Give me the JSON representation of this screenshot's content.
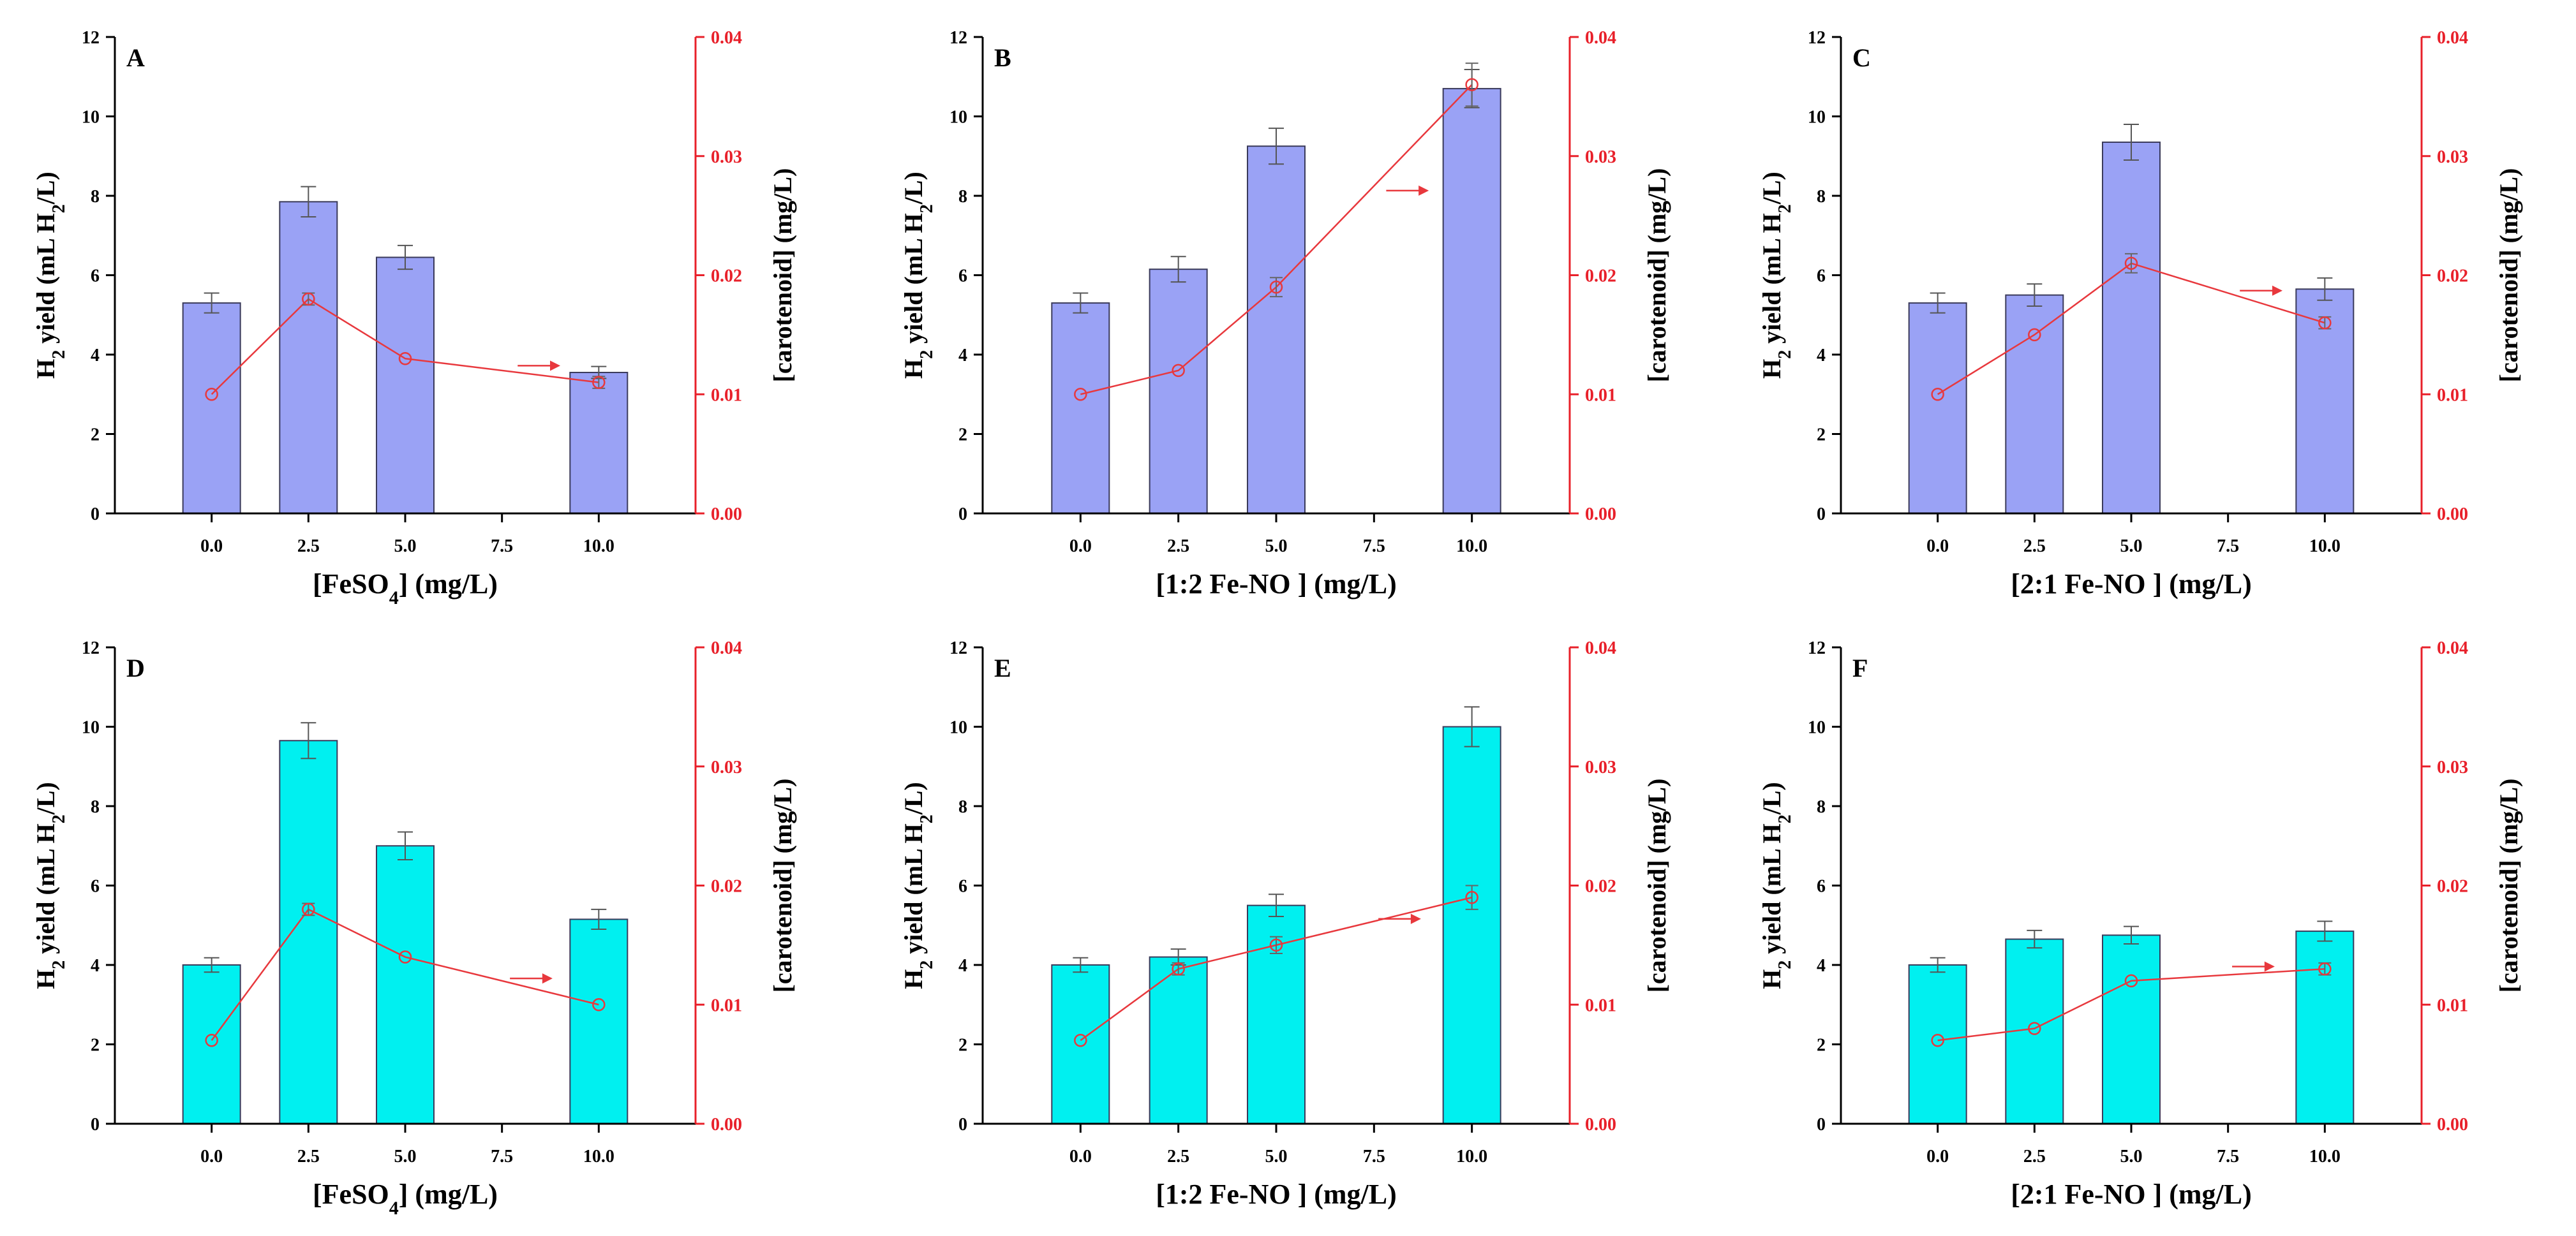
{
  "colors": {
    "bar_blue": "#9aa2f5",
    "bar_cyan": "#00f0f0",
    "line_red": "#e8383d",
    "axis_red": "#e8202a",
    "axis_black": "#000000"
  },
  "chart_data": [
    {
      "type": "bar",
      "panel": "A",
      "title": "",
      "xlabel": "[FeSO4] (mg/L)",
      "xlabel_main": "[FeSO",
      "xlabel_sub": "4",
      "xlabel_tail": "] (mg/L)",
      "ylabel": "H2 yield (mL H2/L)",
      "ylabel_right": "[carotenoid] (mg/L)",
      "x_ticks": [
        "0.0",
        "2.5",
        "5.0",
        "7.5",
        "10.0"
      ],
      "x": [
        0.0,
        2.5,
        5.0,
        10.0
      ],
      "xlim": [
        -2.5,
        12.5
      ],
      "ylim": [
        0,
        12
      ],
      "y_ticks": [
        "0",
        "2",
        "4",
        "6",
        "8",
        "10",
        "12"
      ],
      "y2lim": [
        0,
        0.04
      ],
      "y2_ticks": [
        "0.00",
        "0.01",
        "0.02",
        "0.03",
        "0.04"
      ],
      "bar_color": "#9aa2f5",
      "series": [
        {
          "name": "H2 yield",
          "axis": "left",
          "values": [
            5.3,
            7.85,
            6.45,
            3.55
          ],
          "errors": [
            0.25,
            0.38,
            0.3,
            0.15
          ]
        },
        {
          "name": "carotenoid",
          "axis": "right",
          "style": "line",
          "values": [
            0.01,
            0.018,
            0.013,
            0.011
          ],
          "errors": [
            0.0,
            0.0005,
            0.0,
            0.0005
          ]
        }
      ],
      "annotation_arrow": {
        "x": 8.4,
        "y2": 0.0124
      }
    },
    {
      "type": "bar",
      "panel": "B",
      "title": "",
      "xlabel": "[1:2 Fe-NO ] (mg/L)",
      "xlabel_main": "[1:2 Fe-NO ] (mg/L)",
      "xlabel_sub": "",
      "xlabel_tail": "",
      "ylabel": "H2 yield (mL H2/L)",
      "ylabel_right": "[carotenoid] (mg/L)",
      "x_ticks": [
        "0.0",
        "2.5",
        "5.0",
        "7.5",
        "10.0"
      ],
      "x": [
        0.0,
        2.5,
        5.0,
        10.0
      ],
      "xlim": [
        -2.5,
        12.5
      ],
      "ylim": [
        0,
        12
      ],
      "y_ticks": [
        "0",
        "2",
        "4",
        "6",
        "8",
        "10",
        "12"
      ],
      "y2lim": [
        0,
        0.04
      ],
      "y2_ticks": [
        "0.00",
        "0.01",
        "0.02",
        "0.03",
        "0.04"
      ],
      "bar_color": "#9aa2f5",
      "series": [
        {
          "name": "H2 yield",
          "axis": "left",
          "values": [
            5.3,
            6.15,
            9.25,
            10.7
          ],
          "errors": [
            0.25,
            0.32,
            0.45,
            0.48
          ]
        },
        {
          "name": "carotenoid",
          "axis": "right",
          "style": "line",
          "values": [
            0.01,
            0.012,
            0.019,
            0.036
          ],
          "errors": [
            0.0,
            0.0,
            0.0008,
            0.0018
          ]
        }
      ],
      "annotation_arrow": {
        "x": 8.3,
        "y2": 0.0271
      }
    },
    {
      "type": "bar",
      "panel": "C",
      "title": "",
      "xlabel": "[2:1 Fe-NO ] (mg/L)",
      "xlabel_main": "[2:1 Fe-NO ] (mg/L)",
      "xlabel_sub": "",
      "xlabel_tail": "",
      "ylabel": "H2 yield (mL H2/L)",
      "ylabel_right": "[carotenoid] (mg/L)",
      "x_ticks": [
        "0.0",
        "2.5",
        "5.0",
        "7.5",
        "10.0"
      ],
      "x": [
        0.0,
        2.5,
        5.0,
        10.0
      ],
      "xlim": [
        -2.5,
        12.5
      ],
      "ylim": [
        0,
        12
      ],
      "y_ticks": [
        "0",
        "2",
        "4",
        "6",
        "8",
        "10",
        "12"
      ],
      "y2lim": [
        0,
        0.04
      ],
      "y2_ticks": [
        "0.00",
        "0.01",
        "0.02",
        "0.03",
        "0.04"
      ],
      "bar_color": "#9aa2f5",
      "series": [
        {
          "name": "H2 yield",
          "axis": "left",
          "values": [
            5.3,
            5.5,
            9.35,
            5.65
          ],
          "errors": [
            0.25,
            0.28,
            0.45,
            0.28
          ]
        },
        {
          "name": "carotenoid",
          "axis": "right",
          "style": "line",
          "values": [
            0.01,
            0.015,
            0.021,
            0.016
          ],
          "errors": [
            0.0,
            0.0,
            0.0008,
            0.0005
          ]
        }
      ],
      "annotation_arrow": {
        "x": 8.3,
        "y2": 0.0187
      }
    },
    {
      "type": "bar",
      "panel": "D",
      "title": "",
      "xlabel": "[FeSO4] (mg/L)",
      "xlabel_main": "[FeSO",
      "xlabel_sub": "4",
      "xlabel_tail": "] (mg/L)",
      "ylabel": "H2 yield (mL H2/L)",
      "ylabel_right": "[carotenoid] (mg/L)",
      "x_ticks": [
        "0.0",
        "2.5",
        "5.0",
        "7.5",
        "10.0"
      ],
      "x": [
        0.0,
        2.5,
        5.0,
        10.0
      ],
      "xlim": [
        -2.5,
        12.5
      ],
      "ylim": [
        0,
        12
      ],
      "y_ticks": [
        "0",
        "2",
        "4",
        "6",
        "8",
        "10",
        "12"
      ],
      "y2lim": [
        0,
        0.04
      ],
      "y2_ticks": [
        "0.00",
        "0.01",
        "0.02",
        "0.03",
        "0.04"
      ],
      "bar_color": "#00f0f0",
      "series": [
        {
          "name": "H2 yield",
          "axis": "left",
          "values": [
            4.0,
            9.65,
            7.0,
            5.15
          ],
          "errors": [
            0.18,
            0.45,
            0.35,
            0.25
          ]
        },
        {
          "name": "carotenoid",
          "axis": "right",
          "style": "line",
          "values": [
            0.007,
            0.018,
            0.014,
            0.01
          ],
          "errors": [
            0.0,
            0.0005,
            0.0,
            0.0
          ]
        }
      ],
      "annotation_arrow": {
        "x": 8.2,
        "y2": 0.0122
      }
    },
    {
      "type": "bar",
      "panel": "E",
      "title": "",
      "xlabel": "[1:2 Fe-NO ] (mg/L)",
      "xlabel_main": "[1:2 Fe-NO ] (mg/L)",
      "xlabel_sub": "",
      "xlabel_tail": "",
      "ylabel": "H2 yield (mL H2/L)",
      "ylabel_right": "[carotenoid] (mg/L)",
      "x_ticks": [
        "0.0",
        "2.5",
        "5.0",
        "7.5",
        "10.0"
      ],
      "x": [
        0.0,
        2.5,
        5.0,
        10.0
      ],
      "xlim": [
        -2.5,
        12.5
      ],
      "ylim": [
        0,
        12
      ],
      "y_ticks": [
        "0",
        "2",
        "4",
        "6",
        "8",
        "10",
        "12"
      ],
      "y2lim": [
        0,
        0.04
      ],
      "y2_ticks": [
        "0.00",
        "0.01",
        "0.02",
        "0.03",
        "0.04"
      ],
      "bar_color": "#00f0f0",
      "series": [
        {
          "name": "H2 yield",
          "axis": "left",
          "values": [
            4.0,
            4.2,
            5.5,
            10.0
          ],
          "errors": [
            0.18,
            0.2,
            0.28,
            0.5
          ]
        },
        {
          "name": "carotenoid",
          "axis": "right",
          "style": "line",
          "values": [
            0.007,
            0.013,
            0.015,
            0.019
          ],
          "errors": [
            0.0,
            0.0005,
            0.0007,
            0.001
          ]
        }
      ],
      "annotation_arrow": {
        "x": 8.1,
        "y2": 0.0172
      }
    },
    {
      "type": "bar",
      "panel": "F",
      "title": "",
      "xlabel": "[2:1 Fe-NO ] (mg/L)",
      "xlabel_main": "[2:1 Fe-NO ] (mg/L)",
      "xlabel_sub": "",
      "xlabel_tail": "",
      "ylabel": "H2 yield (mL H2/L)",
      "ylabel_right": "[carotenoid] (mg/L)",
      "x_ticks": [
        "0.0",
        "2.5",
        "5.0",
        "7.5",
        "10.0"
      ],
      "x": [
        0.0,
        2.5,
        5.0,
        10.0
      ],
      "xlim": [
        -2.5,
        12.5
      ],
      "ylim": [
        0,
        12
      ],
      "y_ticks": [
        "0",
        "2",
        "4",
        "6",
        "8",
        "10",
        "12"
      ],
      "y2lim": [
        0,
        0.04
      ],
      "y2_ticks": [
        "0.00",
        "0.01",
        "0.02",
        "0.03",
        "0.04"
      ],
      "bar_color": "#00f0f0",
      "series": [
        {
          "name": "H2 yield",
          "axis": "left",
          "values": [
            4.0,
            4.65,
            4.75,
            4.85
          ],
          "errors": [
            0.18,
            0.22,
            0.22,
            0.25
          ]
        },
        {
          "name": "carotenoid",
          "axis": "right",
          "style": "line",
          "values": [
            0.007,
            0.008,
            0.012,
            0.013
          ],
          "errors": [
            0.0,
            0.0,
            0.0,
            0.0005
          ]
        }
      ],
      "annotation_arrow": {
        "x": 8.1,
        "y2": 0.0132
      }
    }
  ]
}
